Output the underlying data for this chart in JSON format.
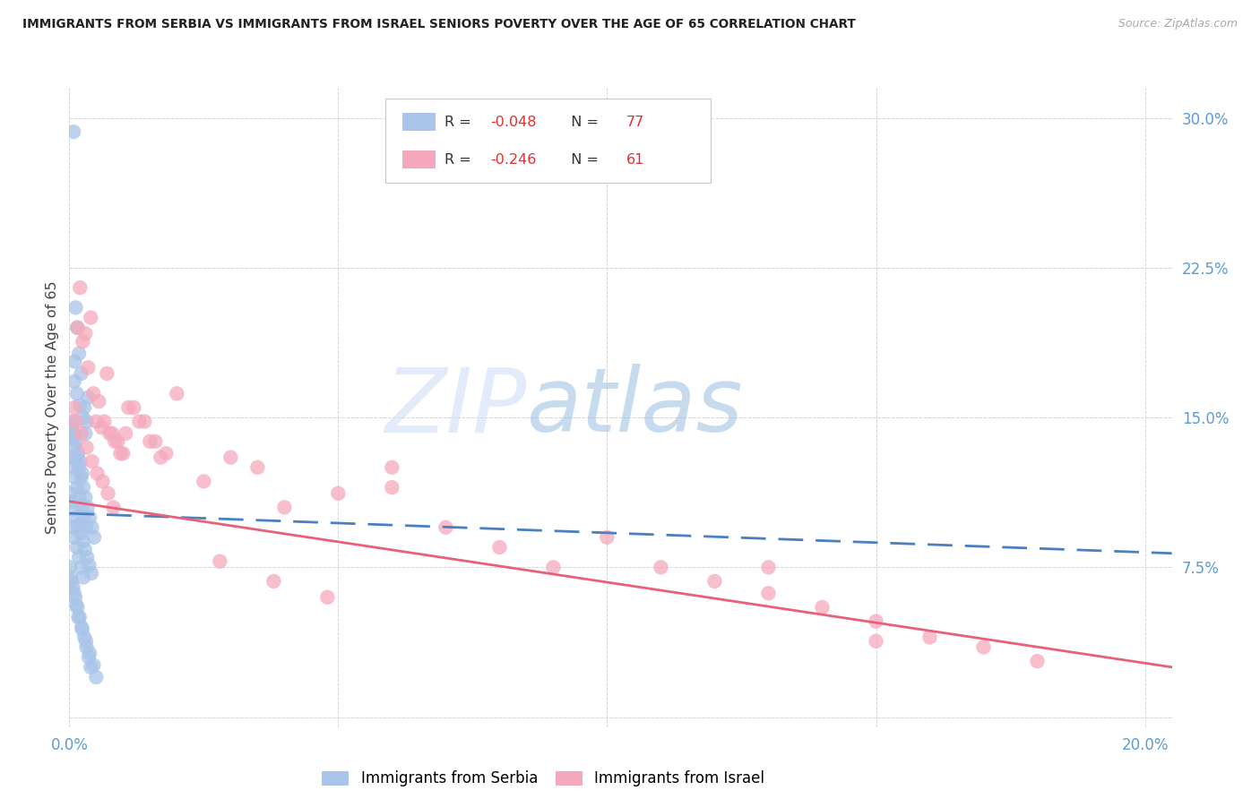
{
  "title": "IMMIGRANTS FROM SERBIA VS IMMIGRANTS FROM ISRAEL SENIORS POVERTY OVER THE AGE OF 65 CORRELATION CHART",
  "source": "Source: ZipAtlas.com",
  "ylabel": "Seniors Poverty Over the Age of 65",
  "series1_label": "Immigrants from Serbia",
  "series2_label": "Immigrants from Israel",
  "series1_R": "-0.048",
  "series1_N": "77",
  "series2_R": "-0.246",
  "series2_N": "61",
  "series1_color": "#a8c4e8",
  "series2_color": "#f5a8bc",
  "trend1_color": "#4a7fc1",
  "trend2_color": "#e8607a",
  "xlim": [
    0.0,
    0.205
  ],
  "ylim": [
    -0.005,
    0.315
  ],
  "ytick_vals": [
    0.0,
    0.075,
    0.15,
    0.225,
    0.3
  ],
  "ytick_labels": [
    "",
    "7.5%",
    "15.0%",
    "22.5%",
    "30.0%"
  ],
  "xtick_vals": [
    0.0,
    0.05,
    0.1,
    0.15,
    0.2
  ],
  "xtick_labels": [
    "0.0%",
    "",
    "",
    "",
    "20.0%"
  ],
  "watermark_zip": "ZIP",
  "watermark_atlas": "atlas",
  "serbia_x": [
    0.0008,
    0.0012,
    0.0015,
    0.0018,
    0.001,
    0.0022,
    0.0009,
    0.0014,
    0.002,
    0.0025,
    0.0005,
    0.003,
    0.0035,
    0.0028,
    0.0032,
    0.0008,
    0.0012,
    0.0016,
    0.002,
    0.0024,
    0.0004,
    0.0006,
    0.001,
    0.0014,
    0.0018,
    0.0022,
    0.0026,
    0.003,
    0.0034,
    0.0038,
    0.0042,
    0.0046,
    0.0003,
    0.0007,
    0.0011,
    0.0015,
    0.0019,
    0.0023,
    0.0027,
    0.0031,
    0.0002,
    0.0005,
    0.0008,
    0.0012,
    0.0016,
    0.0021,
    0.0025,
    0.0029,
    0.0033,
    0.0037,
    0.0041,
    0.0006,
    0.001,
    0.0014,
    0.0018,
    0.0022,
    0.0026,
    0.0001,
    0.0003,
    0.0007,
    0.0011,
    0.0015,
    0.0019,
    0.0023,
    0.0028,
    0.0032,
    0.0036,
    0.004,
    0.0004,
    0.0009,
    0.0013,
    0.0017,
    0.0024,
    0.0031,
    0.0038,
    0.0045,
    0.005
  ],
  "serbia_y": [
    0.293,
    0.205,
    0.195,
    0.182,
    0.178,
    0.172,
    0.168,
    0.162,
    0.156,
    0.15,
    0.148,
    0.142,
    0.16,
    0.155,
    0.148,
    0.142,
    0.138,
    0.132,
    0.128,
    0.122,
    0.145,
    0.14,
    0.135,
    0.13,
    0.125,
    0.12,
    0.115,
    0.11,
    0.105,
    0.1,
    0.095,
    0.09,
    0.13,
    0.125,
    0.12,
    0.115,
    0.11,
    0.105,
    0.1,
    0.095,
    0.112,
    0.108,
    0.104,
    0.1,
    0.096,
    0.092,
    0.088,
    0.084,
    0.08,
    0.076,
    0.072,
    0.095,
    0.09,
    0.085,
    0.08,
    0.075,
    0.07,
    0.075,
    0.07,
    0.065,
    0.06,
    0.055,
    0.05,
    0.045,
    0.04,
    0.035,
    0.03,
    0.025,
    0.068,
    0.062,
    0.056,
    0.05,
    0.044,
    0.038,
    0.032,
    0.026,
    0.02
  ],
  "israel_x": [
    0.001,
    0.002,
    0.003,
    0.004,
    0.005,
    0.006,
    0.007,
    0.008,
    0.009,
    0.01,
    0.0015,
    0.0025,
    0.0035,
    0.0045,
    0.0055,
    0.0065,
    0.0075,
    0.0085,
    0.0095,
    0.0105,
    0.012,
    0.014,
    0.016,
    0.018,
    0.02,
    0.025,
    0.03,
    0.035,
    0.04,
    0.05,
    0.06,
    0.07,
    0.08,
    0.09,
    0.1,
    0.11,
    0.12,
    0.13,
    0.14,
    0.15,
    0.16,
    0.17,
    0.18,
    0.0012,
    0.0022,
    0.0032,
    0.0042,
    0.0052,
    0.0062,
    0.0072,
    0.0082,
    0.011,
    0.013,
    0.015,
    0.017,
    0.06,
    0.13,
    0.15,
    0.028,
    0.038,
    0.048
  ],
  "israel_y": [
    0.155,
    0.215,
    0.192,
    0.2,
    0.148,
    0.145,
    0.172,
    0.142,
    0.138,
    0.132,
    0.195,
    0.188,
    0.175,
    0.162,
    0.158,
    0.148,
    0.142,
    0.138,
    0.132,
    0.142,
    0.155,
    0.148,
    0.138,
    0.132,
    0.162,
    0.118,
    0.13,
    0.125,
    0.105,
    0.112,
    0.125,
    0.095,
    0.085,
    0.075,
    0.09,
    0.075,
    0.068,
    0.062,
    0.055,
    0.048,
    0.04,
    0.035,
    0.028,
    0.148,
    0.142,
    0.135,
    0.128,
    0.122,
    0.118,
    0.112,
    0.105,
    0.155,
    0.148,
    0.138,
    0.13,
    0.115,
    0.075,
    0.038,
    0.078,
    0.068,
    0.06
  ],
  "trend1_x_start": 0.0,
  "trend1_x_end": 0.205,
  "trend1_y_start": 0.102,
  "trend1_y_end": 0.082,
  "trend2_x_start": 0.0,
  "trend2_x_end": 0.205,
  "trend2_y_start": 0.108,
  "trend2_y_end": 0.025
}
